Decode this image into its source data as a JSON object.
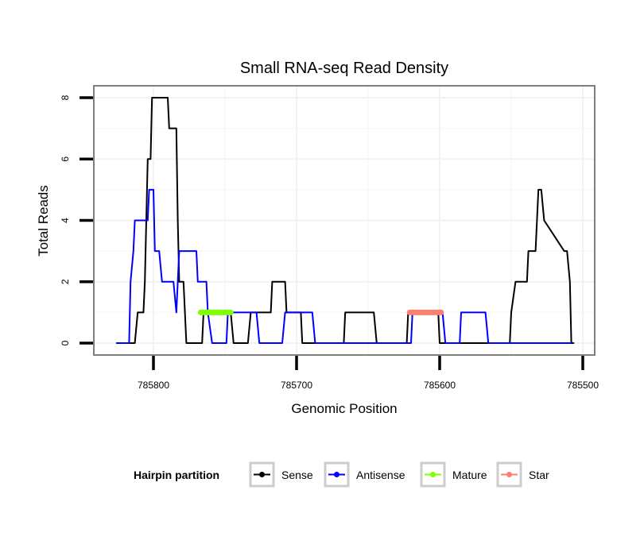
{
  "chart_data": {
    "type": "line",
    "title": "Small RNA-seq Read Density",
    "xlabel": "Genomic Position",
    "ylabel": "Total Reads",
    "x_reversed": true,
    "xlim": [
      785826,
      785492
    ],
    "ylim": [
      -0.4,
      8.4
    ],
    "xticks": [
      785800,
      785700,
      785600,
      785500
    ],
    "xtick_labels": [
      "785800",
      "785700",
      "785600",
      "785500"
    ],
    "yticks": [
      0,
      2,
      4,
      6,
      8
    ],
    "ytick_labels": [
      "0",
      "2",
      "4",
      "6",
      "8"
    ],
    "grid": true,
    "legend": {
      "title": "Hairpin partition",
      "position": "bottom",
      "entries": [
        {
          "label": "Sense",
          "color": "#000000"
        },
        {
          "label": "Antisense",
          "color": "#0000FF"
        },
        {
          "label": "Mature",
          "color": "#7FFF00"
        },
        {
          "label": "Star",
          "color": "#FA8072"
        }
      ]
    },
    "series": [
      {
        "name": "Sense",
        "color": "#000000",
        "x": [
          785826,
          785813,
          785811,
          785807,
          785806,
          785804,
          785802,
          785801,
          785790,
          785789,
          785784,
          785783,
          785782,
          785779,
          785777,
          785766,
          785765,
          785746,
          785744,
          785734,
          785732,
          785718,
          785717,
          785708,
          785707,
          785697,
          785696,
          785667,
          785666,
          785646,
          785644,
          785623,
          785622,
          785601,
          785600,
          785551,
          785550,
          785547,
          785539,
          785538,
          785533,
          785531,
          785529,
          785527,
          785513,
          785511,
          785509,
          785508,
          785506
        ],
        "values": [
          0,
          0,
          1,
          1,
          2,
          6,
          6,
          8,
          8,
          7,
          7,
          4,
          2,
          2,
          0,
          0,
          1,
          1,
          0,
          0,
          1,
          1,
          2,
          2,
          1,
          1,
          0,
          0,
          1,
          1,
          0,
          0,
          1,
          1,
          0,
          0,
          1,
          2,
          2,
          3,
          3,
          5,
          5,
          4,
          3,
          3,
          2,
          0,
          0
        ]
      },
      {
        "name": "Antisense",
        "color": "#0000FF",
        "x": [
          785826,
          785817,
          785816,
          785814,
          785813,
          785804,
          785803,
          785800,
          785799,
          785796,
          785794,
          785786,
          785784,
          785783,
          785782,
          785770,
          785769,
          785763,
          785762,
          785759,
          785749,
          785748,
          785728,
          785726,
          785710,
          785708,
          785689,
          785687,
          785620,
          785619,
          785598,
          785596,
          785586,
          785585,
          785568,
          785566,
          785508
        ],
        "values": [
          0,
          0,
          2,
          3,
          4,
          4,
          5,
          5,
          3,
          3,
          2,
          2,
          1,
          2,
          3,
          3,
          2,
          2,
          1,
          0,
          0,
          1,
          1,
          0,
          0,
          1,
          1,
          0,
          0,
          1,
          1,
          0,
          0,
          1,
          1,
          0,
          0
        ]
      },
      {
        "name": "Mature",
        "color": "#7FFF00",
        "x": [
          785767,
          785746
        ],
        "values": [
          1,
          1
        ]
      },
      {
        "name": "Star",
        "color": "#FA8072",
        "x": [
          785621,
          785599
        ],
        "values": [
          1,
          1
        ]
      }
    ]
  }
}
